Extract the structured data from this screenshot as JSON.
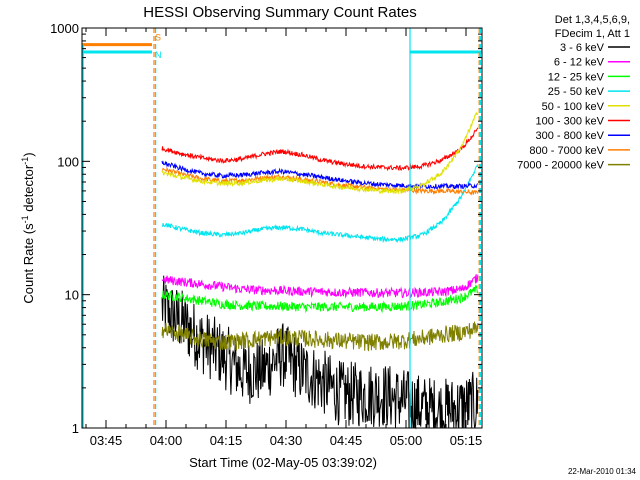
{
  "chart_data": {
    "type": "line",
    "title": "HESSI Observing Summary Count Rates",
    "xlabel": "Start Time (02-May-05 03:39:02)",
    "ylabel": "Count Rate (s⁻¹ detector⁻¹)",
    "ylabel_parts": {
      "main": "Count Rate (s",
      "sup1": "-1",
      "mid": " detector",
      "sup2": "-1",
      "end": ")"
    },
    "yscale": "log",
    "ylim": [
      1,
      1000
    ],
    "xlim_minutes": [
      0,
      100
    ],
    "x_ticks": [
      {
        "label": "03:45",
        "minute": 6
      },
      {
        "label": "04:00",
        "minute": 21
      },
      {
        "label": "04:15",
        "minute": 36
      },
      {
        "label": "04:30",
        "minute": 51
      },
      {
        "label": "04:45",
        "minute": 66
      },
      {
        "label": "05:00",
        "minute": 81
      },
      {
        "label": "05:15",
        "minute": 96
      }
    ],
    "y_ticks": [
      {
        "label": "1",
        "value": 1
      },
      {
        "label": "10",
        "value": 10
      },
      {
        "label": "100",
        "value": 100
      },
      {
        "label": "1000",
        "value": 1000
      }
    ],
    "legend_header": [
      "Det 1,3,4,5,6,9,",
      "FDecim 1, Att 1"
    ],
    "legend_position": "right",
    "footer_date": "22-Mar-2010 01:34",
    "flags": [
      {
        "label": "S",
        "color": "#ff7f00",
        "value": 750,
        "x_start": 0,
        "x_end": 17.5
      },
      {
        "label": "N",
        "color": "#00e5ee",
        "value": 660,
        "x_start": 0,
        "x_end": 17.5
      },
      {
        "label": "",
        "color": "#00e5ee",
        "value": 660,
        "x_start": 82,
        "x_end": 100
      }
    ],
    "vlines": [
      {
        "minute": 18,
        "color": "#ff7f00",
        "style": "dashed"
      },
      {
        "minute": 18.4,
        "color": "#00e5ee",
        "style": "dashed"
      },
      {
        "minute": 82,
        "color": "#00e5ee",
        "style": "solid"
      },
      {
        "minute": 99.3,
        "color": "#ff7f00",
        "style": "dashed"
      },
      {
        "minute": 99.6,
        "color": "#00e5ee",
        "style": "dashed"
      }
    ],
    "series": [
      {
        "name": "3 - 6 keV",
        "color": "#000000",
        "x": [
          20,
          25,
          30,
          35,
          40,
          45,
          50,
          55,
          60,
          65,
          70,
          75,
          80,
          85,
          90,
          95,
          99
        ],
        "values": [
          9,
          7,
          5,
          4,
          3,
          3,
          4,
          3,
          2.5,
          2,
          2,
          2,
          1.8,
          1.6,
          1.5,
          1.6,
          1.7
        ]
      },
      {
        "name": "6 - 12 keV",
        "color": "#ff00ff",
        "x": [
          20,
          25,
          30,
          35,
          40,
          45,
          50,
          55,
          60,
          65,
          70,
          75,
          80,
          85,
          90,
          95,
          99
        ],
        "values": [
          13,
          12.5,
          12,
          11.5,
          11,
          10.8,
          10.7,
          10.6,
          10.5,
          10.4,
          10.4,
          10.3,
          10.3,
          10.4,
          10.5,
          11,
          13.5
        ]
      },
      {
        "name": "12 - 25 keV",
        "color": "#00ff00",
        "x": [
          20,
          25,
          30,
          35,
          40,
          45,
          50,
          55,
          60,
          65,
          70,
          75,
          80,
          85,
          90,
          95,
          99
        ],
        "values": [
          10,
          9.5,
          9,
          8.5,
          8.3,
          8.2,
          8.2,
          8.1,
          8.1,
          8.1,
          8.1,
          8.1,
          8.2,
          8.4,
          8.8,
          9.5,
          11
        ]
      },
      {
        "name": "25 - 50 keV",
        "color": "#00e5ee",
        "x": [
          20,
          25,
          30,
          35,
          40,
          45,
          50,
          55,
          60,
          65,
          70,
          75,
          80,
          85,
          90,
          95,
          99
        ],
        "values": [
          34,
          31,
          29,
          28,
          29,
          31,
          32,
          31,
          29,
          28,
          27,
          26,
          26,
          28,
          35,
          55,
          95
        ]
      },
      {
        "name": "50 - 100 keV",
        "color": "#e0e000",
        "x": [
          20,
          25,
          30,
          35,
          40,
          45,
          50,
          55,
          60,
          65,
          70,
          75,
          80,
          85,
          90,
          95,
          99
        ],
        "values": [
          82,
          76,
          71,
          68,
          69,
          72,
          74,
          71,
          67,
          64,
          62,
          60,
          60,
          66,
          82,
          130,
          240
        ]
      },
      {
        "name": "100 - 300 keV",
        "color": "#ff0000",
        "x": [
          20,
          25,
          30,
          35,
          40,
          45,
          50,
          55,
          60,
          65,
          70,
          75,
          80,
          85,
          90,
          95,
          99
        ],
        "values": [
          125,
          114,
          106,
          101,
          104,
          113,
          119,
          112,
          102,
          96,
          92,
          90,
          89,
          92,
          102,
          125,
          175
        ]
      },
      {
        "name": "300 - 800 keV",
        "color": "#0000ff",
        "x": [
          20,
          25,
          30,
          35,
          40,
          45,
          50,
          55,
          60,
          65,
          70,
          75,
          80,
          85,
          90,
          95,
          99
        ],
        "values": [
          98,
          88,
          81,
          78,
          79,
          82,
          84,
          80,
          76,
          72,
          69,
          67,
          66,
          65,
          65,
          65,
          66
        ]
      },
      {
        "name": "800 - 7000 keV",
        "color": "#ff7f00",
        "x": [
          20,
          25,
          30,
          35,
          40,
          45,
          50,
          55,
          60,
          65,
          70,
          75,
          80,
          85,
          90,
          95,
          99
        ],
        "values": [
          88,
          80,
          74,
          71,
          72,
          75,
          77,
          73,
          70,
          66,
          64,
          62,
          61,
          60,
          60,
          59,
          58
        ]
      },
      {
        "name": "7000 - 20000 keV",
        "color": "#808000",
        "x": [
          20,
          25,
          30,
          35,
          40,
          45,
          50,
          55,
          60,
          65,
          70,
          75,
          80,
          85,
          90,
          95,
          99
        ],
        "values": [
          5.5,
          5,
          4.6,
          4.4,
          4.5,
          4.7,
          4.8,
          4.7,
          4.6,
          4.5,
          4.4,
          4.4,
          4.5,
          4.7,
          5,
          5.2,
          5.6
        ]
      }
    ]
  }
}
